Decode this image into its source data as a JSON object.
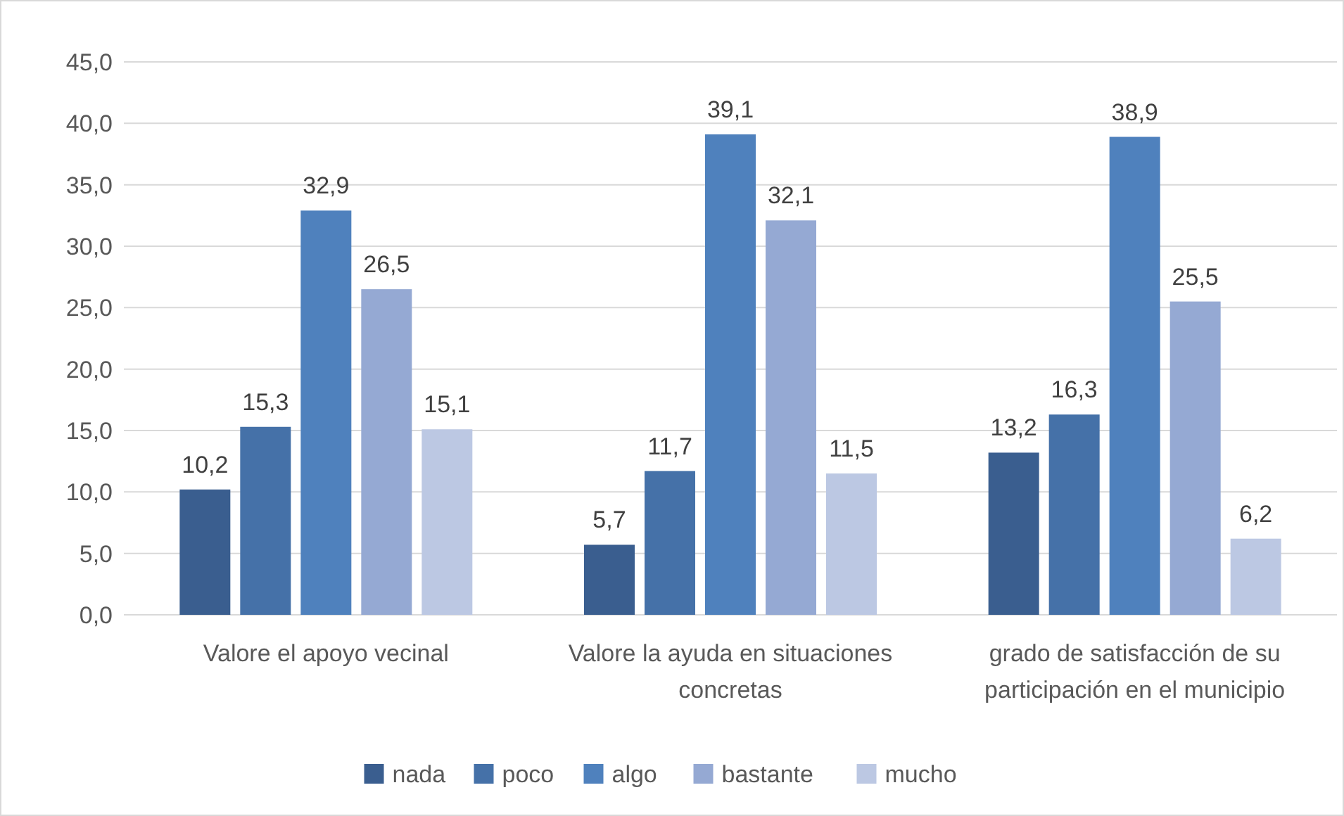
{
  "chart_data": {
    "type": "bar",
    "categories": [
      "Valore el apoyo vecinal",
      "Valore la ayuda en situaciones concretas",
      "grado de satisfacción de su participación en el municipio"
    ],
    "series": [
      {
        "name": "nada",
        "color": "#3a5e8f",
        "values": [
          10.2,
          5.7,
          13.2
        ],
        "value_labels": [
          "10,2",
          "5,7",
          "13,2"
        ]
      },
      {
        "name": "poco",
        "color": "#4571a8",
        "values": [
          15.3,
          11.7,
          16.3
        ],
        "value_labels": [
          "15,3",
          "11,7",
          "16,3"
        ]
      },
      {
        "name": "algo",
        "color": "#4f81bd",
        "values": [
          32.9,
          39.1,
          38.9
        ],
        "value_labels": [
          "32,9",
          "39,1",
          "38,9"
        ]
      },
      {
        "name": "bastante",
        "color": "#95a9d3",
        "values": [
          26.5,
          32.1,
          25.5
        ],
        "value_labels": [
          "26,5",
          "32,1",
          "25,5"
        ]
      },
      {
        "name": "mucho",
        "color": "#bcc8e3",
        "values": [
          15.1,
          11.5,
          6.2
        ],
        "value_labels": [
          "15,1",
          "11,5",
          "6,2"
        ]
      }
    ],
    "ylim": [
      0,
      45
    ],
    "yticks": [
      {
        "value": 0,
        "label": "0,0"
      },
      {
        "value": 5,
        "label": "5,0"
      },
      {
        "value": 10,
        "label": "10,0"
      },
      {
        "value": 15,
        "label": "15,0"
      },
      {
        "value": 20,
        "label": "20,0"
      },
      {
        "value": 25,
        "label": "25,0"
      },
      {
        "value": 30,
        "label": "30,0"
      },
      {
        "value": 35,
        "label": "35,0"
      },
      {
        "value": 40,
        "label": "40,0"
      },
      {
        "value": 45,
        "label": "45,0"
      }
    ],
    "grid": "y",
    "legend": "bottom"
  }
}
